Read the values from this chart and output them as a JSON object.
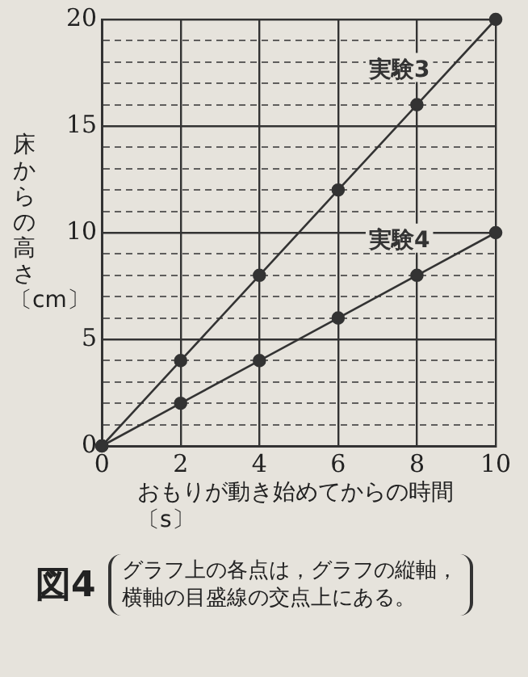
{
  "chart_data": {
    "type": "line",
    "xlabel": "おもりが動き始めてからの時間〔s〕",
    "ylabel": "床からの高さ〔cm〕",
    "x": [
      0,
      2,
      4,
      6,
      8,
      10
    ],
    "series": [
      {
        "name": "実験3",
        "color": "#333333",
        "values": [
          0,
          4,
          8,
          12,
          16,
          20
        ]
      },
      {
        "name": "実験4",
        "color": "#333333",
        "values": [
          0,
          2,
          4,
          6,
          8,
          10
        ]
      }
    ],
    "xlim": [
      0,
      10
    ],
    "xticks": [
      0,
      2,
      4,
      6,
      8,
      10
    ],
    "ylim": [
      0,
      20
    ],
    "yticks": [
      0,
      {
        "value": 1,
        "label": null
      },
      {
        "value": 2,
        "label": null
      },
      {
        "value": 3,
        "label": null
      },
      {
        "value": 4,
        "label": null
      },
      5,
      {
        "value": 6,
        "label": null
      },
      {
        "value": 7,
        "label": null
      },
      {
        "value": 8,
        "label": null
      },
      {
        "value": 9,
        "label": null
      },
      10,
      {
        "value": 11,
        "label": null
      },
      {
        "value": 12,
        "label": null
      },
      {
        "value": 13,
        "label": null
      },
      {
        "value": 14,
        "label": null
      },
      15,
      {
        "value": 16,
        "label": null
      },
      {
        "value": 17,
        "label": null
      },
      {
        "value": 18,
        "label": null
      },
      {
        "value": 19,
        "label": null
      },
      20
    ],
    "grid": true,
    "marker": "circle",
    "line_style": "solid",
    "legend": false,
    "annotations": [
      "図4",
      "グラフ上の各点は，グラフの縦軸，横軸の目盛線の交点上にある。"
    ]
  }
}
